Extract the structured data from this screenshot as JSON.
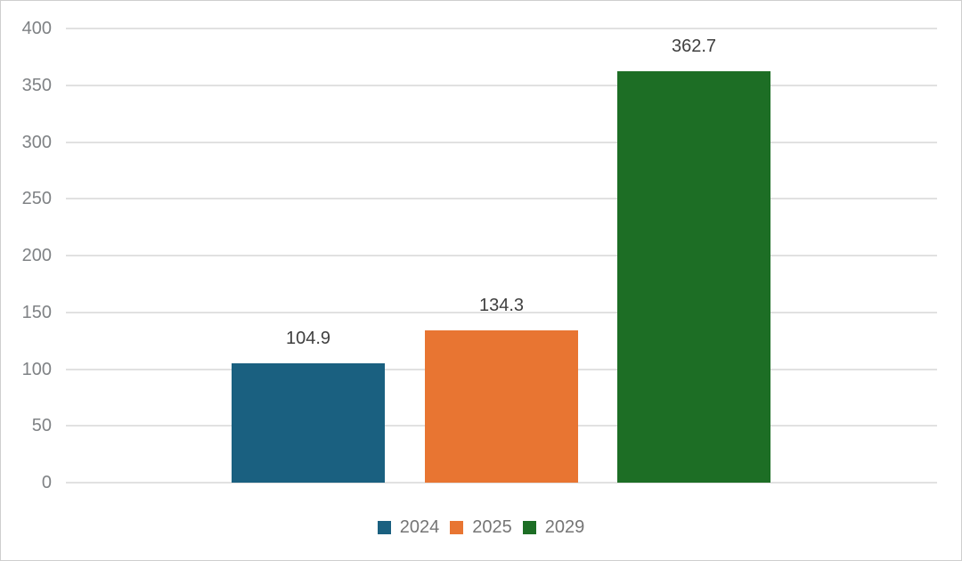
{
  "chart_data": {
    "type": "bar",
    "title": "",
    "xlabel": "",
    "ylabel": "",
    "categories": [
      ""
    ],
    "series": [
      {
        "name": "2024",
        "value": 104.9,
        "label": "104.9",
        "color": "#1a6080"
      },
      {
        "name": "2025",
        "value": 134.3,
        "label": "134.3",
        "color": "#e87532"
      },
      {
        "name": "2029",
        "value": 362.7,
        "label": "362.7",
        "color": "#1d6e25"
      }
    ],
    "ylim": [
      0,
      400
    ],
    "y_tick_step": 50,
    "y_ticks": [
      "0",
      "50",
      "100",
      "150",
      "200",
      "250",
      "300",
      "350",
      "400"
    ],
    "grid": true,
    "legend_position": "bottom"
  },
  "colors": {
    "background": "#ffffff",
    "frame_border": "#cfcfcf",
    "gridline": "#e1e1e1",
    "tick_text": "#7f8285",
    "data_label_text": "#3f3f3f",
    "legend_text": "#757575"
  }
}
